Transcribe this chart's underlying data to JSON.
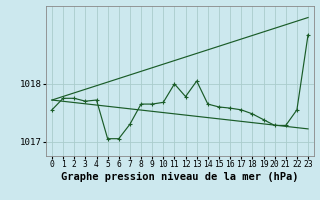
{
  "title": "Graphe pression niveau de la mer (hPa)",
  "bg_color": "#cce8ee",
  "grid_color": "#aacccc",
  "line_color": "#1a5c28",
  "x_labels": [
    "0",
    "1",
    "2",
    "3",
    "4",
    "5",
    "6",
    "7",
    "8",
    "9",
    "10",
    "11",
    "12",
    "13",
    "14",
    "15",
    "16",
    "17",
    "18",
    "19",
    "20",
    "21",
    "22",
    "23"
  ],
  "pressure_data": [
    1017.55,
    1017.75,
    1017.75,
    1017.7,
    1017.72,
    1017.05,
    1017.05,
    1017.3,
    1017.65,
    1017.65,
    1017.68,
    1018.0,
    1017.78,
    1018.05,
    1017.65,
    1017.6,
    1017.58,
    1017.55,
    1017.48,
    1017.38,
    1017.28,
    1017.28,
    1017.55,
    1018.85
  ],
  "asc_line": [
    [
      0,
      1017.72
    ],
    [
      23,
      1019.15
    ]
  ],
  "desc_line": [
    [
      0,
      1017.72
    ],
    [
      23,
      1017.22
    ]
  ],
  "ylim": [
    1016.75,
    1019.35
  ],
  "yticks": [
    1017,
    1018
  ],
  "title_fontsize": 7.5,
  "tick_fontsize": 5.8
}
